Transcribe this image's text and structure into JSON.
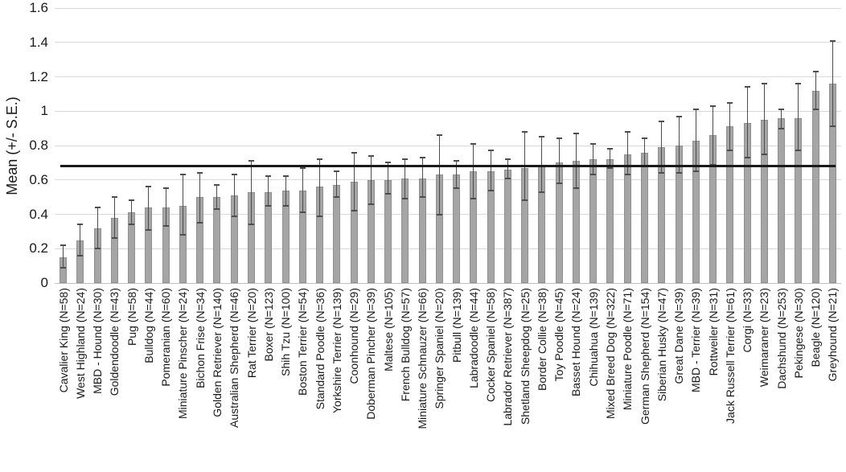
{
  "chart_data": {
    "type": "bar",
    "title": "",
    "xlabel": "",
    "ylabel": "Mean (+/- S.E.)",
    "ylim": [
      0,
      1.6
    ],
    "yticks": [
      "0",
      "0.2",
      "0.4",
      "0.6",
      "0.8",
      "1",
      "1.2",
      "1.4",
      "1.6"
    ],
    "ytick_values": [
      0,
      0.2,
      0.4,
      0.6,
      0.8,
      1,
      1.2,
      1.4,
      1.6
    ],
    "grid": true,
    "legend": false,
    "error_bars": true,
    "reference_line_value": 0.68,
    "colors": {
      "bar": "#a5a5a5",
      "bar_border": "#8f8f8f",
      "error": "#4d4d4d",
      "gridline": "#d9d9d9",
      "axis_line": "#bfbfbf",
      "reference_line": "#1a1a1a",
      "text": "#1a1a1a"
    },
    "categories": [
      "Cavalier King (N=58)",
      "West Highland (N=24)",
      "MBD - Hound (N=30)",
      "Goldendoodle (N=43)",
      "Pug (N=58)",
      "Bulldog (N=44)",
      "Pomeranian (N=60)",
      "Miniature Pinscher (N=24)",
      "Bichon Frise (N=34)",
      "Golden Retriever (N=140)",
      "Australian Shepherd (N=46)",
      "Rat Terrier (N=20)",
      "Boxer (N=123)",
      "Shih Tzu (N=100)",
      "Boston Terrier (N=54)",
      "Standard Poodle (N=36)",
      "Yorkshire Terrier (N=139)",
      "Coonhound (N=29)",
      "Doberman Pincher (N=39)",
      "Maltese (N=105)",
      "French Bulldog (N=57)",
      "Miniature Schnauzer (N=66)",
      "Springer Spaniel (N=20)",
      "Pitbull (N=139)",
      "Labradoodle (N=44)",
      "Cocker Spaniel (N=58)",
      "Labrador Retriever (N=387)",
      "Shetland Sheepdog (N=25)",
      "Border Collie (N=38)",
      "Toy Poodle (N=45)",
      "Basset Hound (N=24)",
      "Chihuahua (N=139)",
      "Mixed Breed Dog (N=322)",
      "Miniature Poodle (N=71)",
      "German Shepherd (N=154)",
      "Siberian Husky (N=47)",
      "Great Dane (N=39)",
      "MBD - Terrier (N=39)",
      "Rottweiler (N=31)",
      "Jack Russell Terrier (N=61)",
      "Corgi (N=33)",
      "Weimaraner (N=23)",
      "Dachshund (N=253)",
      "Pekingese (N=30)",
      "Beagle (N=120)",
      "Greyhound (N=21)"
    ],
    "values": [
      0.15,
      0.25,
      0.32,
      0.38,
      0.41,
      0.44,
      0.44,
      0.45,
      0.5,
      0.5,
      0.51,
      0.53,
      0.53,
      0.54,
      0.54,
      0.56,
      0.57,
      0.59,
      0.6,
      0.6,
      0.61,
      0.61,
      0.63,
      0.63,
      0.65,
      0.65,
      0.66,
      0.67,
      0.69,
      0.7,
      0.71,
      0.72,
      0.72,
      0.75,
      0.76,
      0.79,
      0.8,
      0.83,
      0.86,
      0.91,
      0.93,
      0.95,
      0.96,
      0.96,
      1.12,
      1.16
    ],
    "error_low": [
      0.09,
      0.16,
      0.2,
      0.26,
      0.34,
      0.31,
      0.33,
      0.28,
      0.35,
      0.43,
      0.39,
      0.34,
      0.45,
      0.45,
      0.41,
      0.39,
      0.5,
      0.42,
      0.46,
      0.52,
      0.49,
      0.5,
      0.4,
      0.55,
      0.49,
      0.54,
      0.61,
      0.48,
      0.53,
      0.58,
      0.55,
      0.63,
      0.67,
      0.63,
      0.68,
      0.64,
      0.64,
      0.65,
      0.69,
      0.77,
      0.73,
      0.75,
      0.9,
      0.77,
      1.01,
      0.91
    ],
    "error_high": [
      0.22,
      0.34,
      0.44,
      0.5,
      0.48,
      0.56,
      0.55,
      0.63,
      0.64,
      0.57,
      0.63,
      0.71,
      0.62,
      0.62,
      0.67,
      0.72,
      0.65,
      0.76,
      0.74,
      0.7,
      0.72,
      0.73,
      0.86,
      0.71,
      0.81,
      0.77,
      0.72,
      0.88,
      0.85,
      0.84,
      0.87,
      0.81,
      0.78,
      0.88,
      0.84,
      0.94,
      0.97,
      1.01,
      1.03,
      1.05,
      1.14,
      1.16,
      1.01,
      1.16,
      1.23,
      1.41
    ]
  }
}
